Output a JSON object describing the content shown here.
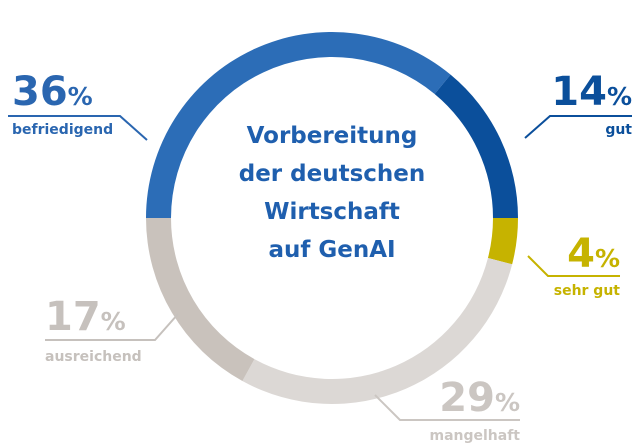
{
  "chart_data": {
    "type": "donut",
    "title": [
      "Vorbereitung",
      "der deutschen",
      "Wirtschaft",
      "auf GenAI"
    ],
    "categories": [
      "befriedigend",
      "gut",
      "sehr gut",
      "mangelhaft",
      "ausreichend"
    ],
    "values": [
      36,
      14,
      4,
      29,
      17
    ],
    "unit": "%",
    "colors": [
      "#2c6db7",
      "#0b4f9b",
      "#c6b300",
      "#dcd8d5",
      "#c9c2bc"
    ],
    "label_colors": [
      "#2a66b0",
      "#0b4f9b",
      "#c6b300",
      "#cbc6c2",
      "#c6c1bd"
    ]
  }
}
